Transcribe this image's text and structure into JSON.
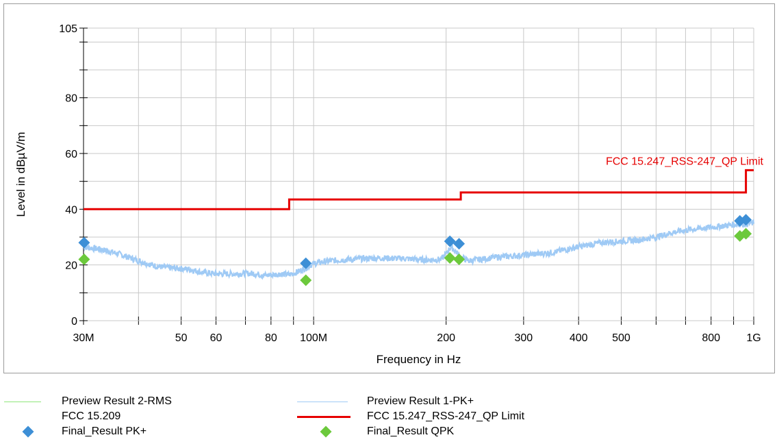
{
  "chart_data": {
    "type": "line",
    "xlabel": "Frequency in Hz",
    "ylabel": "Level in dBµV/m",
    "xscale": "log",
    "xlim": [
      30000000,
      1000000000
    ],
    "ylim": [
      0,
      105
    ],
    "grid": true,
    "x_ticks": [
      {
        "value": 30000000,
        "label": "30M"
      },
      {
        "value": 50000000,
        "label": "50"
      },
      {
        "value": 60000000,
        "label": "60"
      },
      {
        "value": 80000000,
        "label": "80"
      },
      {
        "value": 100000000,
        "label": "100M"
      },
      {
        "value": 200000000,
        "label": "200"
      },
      {
        "value": 300000000,
        "label": "300"
      },
      {
        "value": 400000000,
        "label": "400"
      },
      {
        "value": 500000000,
        "label": "500"
      },
      {
        "value": 800000000,
        "label": "800"
      },
      {
        "value": 1000000000,
        "label": "1G"
      }
    ],
    "y_ticks": [
      {
        "value": 0,
        "label": "0"
      },
      {
        "value": 20,
        "label": "20"
      },
      {
        "value": 40,
        "label": "40"
      },
      {
        "value": 60,
        "label": "60"
      },
      {
        "value": 80,
        "label": "80"
      },
      {
        "value": 105,
        "label": "105"
      }
    ],
    "limit_line": {
      "name": "FCC 15.247_RSS-247_QP Limit",
      "annotation": "FCC 15.247_RSS-247_QP Limit",
      "color": "#e60000",
      "points": [
        [
          30000000,
          40
        ],
        [
          88000000,
          40
        ],
        [
          88000000,
          43.5
        ],
        [
          216000000,
          43.5
        ],
        [
          216000000,
          46
        ],
        [
          960000000,
          46
        ],
        [
          960000000,
          54
        ],
        [
          1000000000,
          54
        ]
      ]
    },
    "preview_pk": {
      "name": "Preview Result 1-PK+",
      "color": "#9fcaf5",
      "points": [
        [
          30000000,
          26.5
        ],
        [
          33000000,
          25.5
        ],
        [
          36000000,
          24
        ],
        [
          40000000,
          21.5
        ],
        [
          44000000,
          19.5
        ],
        [
          48000000,
          18.8
        ],
        [
          52000000,
          18.5
        ],
        [
          56000000,
          17.3
        ],
        [
          60000000,
          16.8
        ],
        [
          66000000,
          16.8
        ],
        [
          72000000,
          17
        ],
        [
          78000000,
          16.2
        ],
        [
          84000000,
          16.8
        ],
        [
          88000000,
          16.5
        ],
        [
          92000000,
          17.5
        ],
        [
          96000000,
          19
        ],
        [
          100000000,
          20.5
        ],
        [
          104000000,
          21
        ],
        [
          110000000,
          21.5
        ],
        [
          120000000,
          22
        ],
        [
          140000000,
          22.5
        ],
        [
          160000000,
          22.3
        ],
        [
          180000000,
          21.8
        ],
        [
          195000000,
          22
        ],
        [
          200000000,
          24
        ],
        [
          205000000,
          26.5
        ],
        [
          210000000,
          25
        ],
        [
          215000000,
          23
        ],
        [
          225000000,
          21.5
        ],
        [
          240000000,
          22
        ],
        [
          260000000,
          22.8
        ],
        [
          300000000,
          23.5
        ],
        [
          350000000,
          24.5
        ],
        [
          400000000,
          26.5
        ],
        [
          450000000,
          28
        ],
        [
          500000000,
          28.5
        ],
        [
          550000000,
          29
        ],
        [
          600000000,
          30
        ],
        [
          650000000,
          31.5
        ],
        [
          700000000,
          32.5
        ],
        [
          800000000,
          33.5
        ],
        [
          900000000,
          34.5
        ],
        [
          1000000000,
          35
        ]
      ]
    },
    "final_pk": {
      "name": "Final_Result PK+",
      "color": "#3d8fd6",
      "points": [
        [
          30100000,
          28
        ],
        [
          96000000,
          20.6
        ],
        [
          204000000,
          28.5
        ],
        [
          214000000,
          27.6
        ],
        [
          930000000,
          35.8
        ],
        [
          960000000,
          36.2
        ]
      ]
    },
    "final_qpk": {
      "name": "Final_Result QPK",
      "color": "#6cc93c",
      "points": [
        [
          30100000,
          22
        ],
        [
          96000000,
          14.5
        ],
        [
          204000000,
          22.5
        ],
        [
          214000000,
          22
        ],
        [
          930000000,
          30.4
        ],
        [
          960000000,
          31.2
        ]
      ]
    }
  },
  "legend": {
    "preview_rms": {
      "label": "Preview Result 2-RMS",
      "color": "#8ee67a"
    },
    "preview_pk": {
      "label": "Preview Result 1-PK+",
      "color": "#9fcaf5"
    },
    "fcc_209": {
      "label": "FCC 15.209"
    },
    "fcc_limit": {
      "label": "FCC 15.247_RSS-247_QP Limit",
      "color": "#e60000"
    },
    "final_pk": {
      "label": "Final_Result PK+",
      "color": "#3d8fd6"
    },
    "final_qpk": {
      "label": "Final_Result QPK",
      "color": "#6cc93c"
    }
  }
}
